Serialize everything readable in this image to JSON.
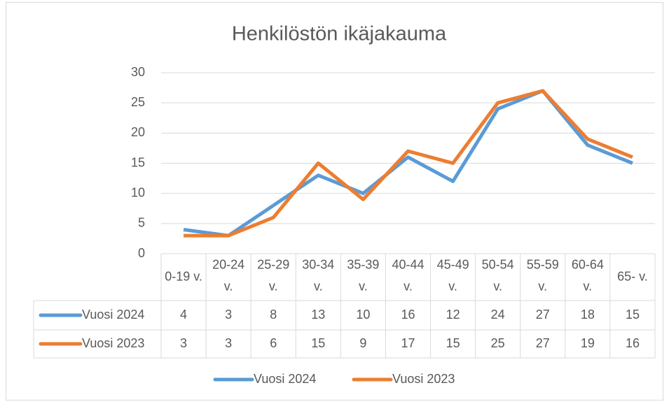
{
  "chart_data": {
    "type": "line",
    "title": "Henkilöstön ikäjakauma",
    "categories": [
      "0-19 v.",
      "20-24 v.",
      "25-29 v.",
      "30-34 v.",
      "35-39 v.",
      "40-44 v.",
      "45-49 v.",
      "50-54 v.",
      "55-59 v.",
      "60-64 v.",
      "65- v."
    ],
    "series": [
      {
        "name": "Vuosi 2024",
        "color": "#5b9bd5",
        "values": [
          4,
          3,
          8,
          13,
          10,
          16,
          12,
          24,
          27,
          18,
          15
        ]
      },
      {
        "name": "Vuosi 2023",
        "color": "#ed7d31",
        "values": [
          3,
          3,
          6,
          15,
          9,
          17,
          15,
          25,
          27,
          19,
          16
        ]
      }
    ],
    "ylim": [
      0,
      30
    ],
    "yticks": [
      0,
      5,
      10,
      15,
      20,
      25,
      30
    ],
    "grid": true,
    "legend": "bottom",
    "data_table": true
  }
}
